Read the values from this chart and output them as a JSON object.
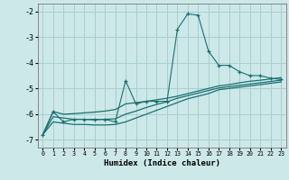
{
  "xlabel": "Humidex (Indice chaleur)",
  "background_color": "#cce8e8",
  "grid_color": "#aacece",
  "line_color": "#1a7070",
  "xlim": [
    -0.5,
    23.5
  ],
  "ylim": [
    -7.3,
    -1.7
  ],
  "yticks": [
    -7,
    -6,
    -5,
    -4,
    -3,
    -2
  ],
  "xticks": [
    0,
    1,
    2,
    3,
    4,
    5,
    6,
    7,
    8,
    9,
    10,
    11,
    12,
    13,
    14,
    15,
    16,
    17,
    18,
    19,
    20,
    21,
    22,
    23
  ],
  "series": [
    {
      "x": [
        0,
        1,
        2,
        3,
        4,
        5,
        6,
        7,
        8,
        9,
        10,
        11,
        12,
        13,
        14,
        15,
        16,
        17,
        18,
        19,
        20,
        21,
        22,
        23
      ],
      "y": [
        -6.8,
        -5.9,
        -6.3,
        -6.2,
        -6.2,
        -6.2,
        -6.2,
        -6.3,
        -4.7,
        -5.6,
        -5.5,
        -5.5,
        -5.5,
        -2.7,
        -2.1,
        -2.15,
        -3.55,
        -4.1,
        -4.1,
        -4.35,
        -4.5,
        -4.5,
        -4.6,
        -4.65
      ],
      "marker": "+"
    },
    {
      "x": [
        0,
        1,
        2,
        3,
        4,
        5,
        6,
        7,
        8,
        9,
        10,
        11,
        12,
        13,
        14,
        15,
        16,
        17,
        18,
        19,
        20,
        21,
        22,
        23
      ],
      "y": [
        -6.8,
        -5.9,
        -6.0,
        -5.98,
        -5.95,
        -5.92,
        -5.88,
        -5.82,
        -5.6,
        -5.55,
        -5.5,
        -5.44,
        -5.38,
        -5.3,
        -5.2,
        -5.1,
        -5.0,
        -4.9,
        -4.85,
        -4.78,
        -4.72,
        -4.68,
        -4.63,
        -4.58
      ],
      "marker": null
    },
    {
      "x": [
        0,
        1,
        2,
        3,
        4,
        5,
        6,
        7,
        8,
        9,
        10,
        11,
        12,
        13,
        14,
        15,
        16,
        17,
        18,
        19,
        20,
        21,
        22,
        23
      ],
      "y": [
        -6.8,
        -6.1,
        -6.15,
        -6.2,
        -6.2,
        -6.22,
        -6.2,
        -6.18,
        -6.0,
        -5.88,
        -5.74,
        -5.62,
        -5.52,
        -5.38,
        -5.28,
        -5.18,
        -5.08,
        -4.98,
        -4.93,
        -4.88,
        -4.83,
        -4.78,
        -4.73,
        -4.68
      ],
      "marker": null
    },
    {
      "x": [
        0,
        1,
        2,
        3,
        4,
        5,
        6,
        7,
        8,
        9,
        10,
        11,
        12,
        13,
        14,
        15,
        16,
        17,
        18,
        19,
        20,
        21,
        22,
        23
      ],
      "y": [
        -6.8,
        -6.3,
        -6.35,
        -6.4,
        -6.4,
        -6.42,
        -6.42,
        -6.4,
        -6.3,
        -6.15,
        -6.0,
        -5.85,
        -5.7,
        -5.55,
        -5.4,
        -5.3,
        -5.2,
        -5.05,
        -5.0,
        -4.95,
        -4.9,
        -4.85,
        -4.8,
        -4.75
      ],
      "marker": null
    }
  ]
}
